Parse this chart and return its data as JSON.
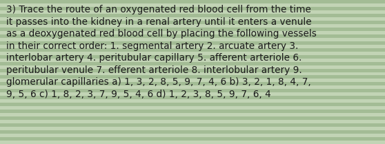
{
  "text": "3) Trace the route of an oxygenated red blood cell from the time\nit passes into the kidney in a renal artery until it enters a venule\nas a deoxygenated red blood cell by placing the following vessels\nin their correct order: 1. segmental artery 2. arcuate artery 3.\ninterlobar artery 4. peritubular capillary 5. afferent arteriole 6.\nperitubular venule 7. efferent arteriole 8. interlobular artery 9.\nglomerular capillaries a) 1, 3, 2, 8, 5, 9, 7, 4, 6 b) 3, 2, 1, 8, 4, 7,\n9, 5, 6 c) 1, 8, 2, 3, 7, 9, 5, 4, 6 d) 1, 2, 3, 8, 5, 9, 7, 6, 4",
  "bg_color": "#b2c8a4",
  "stripe_color_light": "#c2d4b5",
  "stripe_color_dark": "#a3bc95",
  "text_color": "#1a1a1a",
  "font_size": 9.8,
  "fig_width": 5.58,
  "fig_height": 2.09,
  "num_stripes": 42
}
